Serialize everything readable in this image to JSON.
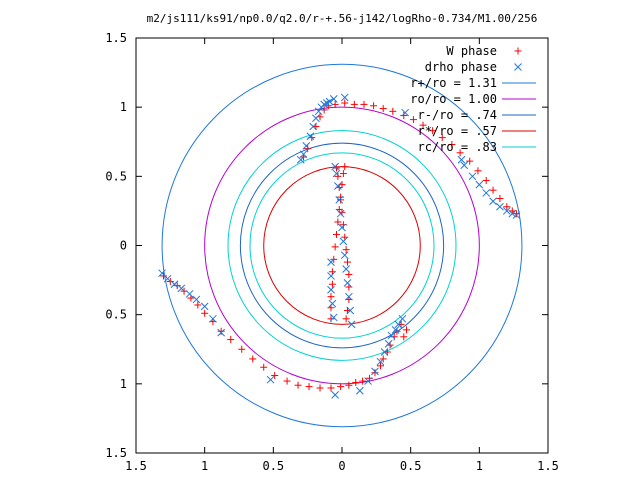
{
  "chart_data": {
    "type": "scatter",
    "title": "m2/js111/ks91/np0.0/q2.0/r-+.56-j142/logRho-0.734/M1.00/256",
    "xlim": [
      -1.5,
      1.5
    ],
    "ylim": [
      -1.5,
      1.5
    ],
    "x_tick_values": [
      -1.5,
      -1,
      -0.5,
      0,
      0.5,
      1,
      1.5
    ],
    "x_tick_labels": [
      "1.5",
      "1",
      "0.5",
      "0",
      "0.5",
      "1",
      "1.5"
    ],
    "y_tick_values": [
      1.5,
      1,
      0.5,
      0,
      -0.5,
      -1,
      -1.5
    ],
    "y_tick_labels": [
      "1.5",
      "1",
      "0.5",
      "0",
      "0.5",
      "1",
      "1.5"
    ],
    "grid": false,
    "legend_position": "top-right",
    "point_series": [
      {
        "name": "W phase",
        "marker": "+",
        "color": "#ff0000",
        "x": [
          -0.04,
          -0.03,
          -0.02,
          -0.01,
          0.0,
          0.01,
          0.02,
          0.03,
          0.04,
          0.05,
          0.05,
          0.05,
          0.04,
          0.03,
          0.02,
          0.01,
          0.0,
          -0.01,
          -0.02,
          -0.03,
          -0.04,
          -0.05,
          -0.06,
          -0.07,
          -0.07,
          -0.08,
          -0.08,
          -0.08,
          -0.05,
          0.02,
          0.09,
          0.16,
          0.23,
          0.3,
          0.37,
          0.45,
          0.52,
          0.59,
          0.66,
          0.73,
          0.8,
          0.86,
          0.93,
          0.99,
          1.05,
          1.1,
          1.15,
          1.2,
          1.24,
          1.27,
          -1.3,
          -1.25,
          -1.2,
          -1.15,
          -1.1,
          -1.05,
          -1.0,
          -0.94,
          -0.88,
          -0.81,
          -0.73,
          -0.65,
          -0.57,
          -0.49,
          -0.4,
          -0.32,
          -0.24,
          -0.16,
          -0.08,
          -0.01,
          0.05,
          0.1,
          0.15,
          0.2,
          0.24,
          0.28,
          0.3,
          0.33,
          0.35,
          0.38,
          0.4,
          0.43,
          0.45,
          0.47,
          -0.28,
          -0.25,
          -0.22,
          -0.19,
          -0.16,
          -0.13,
          -0.1
        ],
        "y": [
          0.56,
          0.5,
          0.42,
          0.33,
          0.24,
          0.15,
          0.06,
          -0.03,
          -0.12,
          -0.21,
          -0.3,
          -0.39,
          -0.47,
          -0.53,
          0.57,
          0.52,
          0.44,
          0.35,
          0.26,
          0.17,
          0.08,
          -0.01,
          -0.1,
          -0.19,
          -0.28,
          -0.37,
          -0.45,
          -0.53,
          1.02,
          1.03,
          1.02,
          1.02,
          1.01,
          0.99,
          0.97,
          0.94,
          0.91,
          0.87,
          0.83,
          0.78,
          0.73,
          0.67,
          0.61,
          0.54,
          0.47,
          0.4,
          0.34,
          0.28,
          0.25,
          0.23,
          -0.22,
          -0.26,
          -0.29,
          -0.33,
          -0.38,
          -0.43,
          -0.49,
          -0.55,
          -0.62,
          -0.68,
          -0.75,
          -0.82,
          -0.88,
          -0.94,
          -0.98,
          -1.01,
          -1.02,
          -1.03,
          -1.03,
          -1.02,
          -1.01,
          -0.99,
          -0.98,
          -0.96,
          -0.92,
          -0.87,
          -0.82,
          -0.77,
          -0.72,
          -0.66,
          -0.62,
          -0.57,
          -0.66,
          -0.61,
          0.64,
          0.7,
          0.78,
          0.86,
          0.93,
          0.98,
          1.01
        ]
      },
      {
        "name": "drho phase",
        "marker": "x",
        "color": "#1e78dc",
        "x": [
          0.07,
          0.06,
          0.05,
          0.04,
          0.03,
          0.02,
          0.01,
          0.0,
          -0.01,
          -0.02,
          -0.03,
          -0.04,
          -0.05,
          -0.06,
          -0.07,
          -0.08,
          -0.08,
          -0.08,
          -0.3,
          -0.28,
          -0.26,
          -0.23,
          -0.21,
          -0.19,
          -0.17,
          -0.15,
          -0.13,
          -0.11,
          -0.09,
          -0.06,
          0.02,
          0.46,
          0.87,
          0.89,
          0.95,
          1.0,
          1.05,
          1.1,
          1.15,
          1.2,
          1.24,
          1.27,
          -1.31,
          -1.27,
          -1.22,
          -1.17,
          -1.11,
          -1.06,
          -1.0,
          -0.94,
          -0.88,
          -0.52,
          -0.05,
          0.13,
          0.19,
          0.24,
          0.28,
          0.31,
          0.34,
          0.36,
          0.39,
          0.41,
          0.44
        ],
        "y": [
          -0.57,
          -0.47,
          -0.37,
          -0.27,
          -0.17,
          -0.07,
          0.03,
          0.13,
          0.23,
          0.33,
          0.43,
          0.52,
          0.57,
          -0.52,
          -0.42,
          -0.32,
          -0.22,
          -0.12,
          0.62,
          0.66,
          0.72,
          0.79,
          0.86,
          0.92,
          0.97,
          1.0,
          1.02,
          1.03,
          1.04,
          1.06,
          1.07,
          0.96,
          0.62,
          0.58,
          0.5,
          0.44,
          0.38,
          0.32,
          0.28,
          0.25,
          0.23,
          0.22,
          -0.2,
          -0.24,
          -0.28,
          -0.31,
          -0.35,
          -0.39,
          -0.44,
          -0.53,
          -0.63,
          -0.97,
          -1.08,
          -1.05,
          -0.98,
          -0.91,
          -0.84,
          -0.77,
          -0.71,
          -0.65,
          -0.61,
          -0.57,
          -0.53
        ]
      }
    ],
    "circle_series": [
      {
        "name": "r+/ro = 1.31",
        "radius": 1.31,
        "color": "#1e78dc"
      },
      {
        "name": "ro/ro = 1.00",
        "radius": 1.0,
        "color": "#b400d2"
      },
      {
        "name": "r-/ro = .74",
        "radius": 0.74,
        "color": "#1e64c8"
      },
      {
        "name": "r*/ro = .57",
        "radius": 0.57,
        "color": "#dc0000"
      },
      {
        "name": "rc/ro = .83",
        "radius": 0.83,
        "color": "#00d2d2"
      }
    ],
    "extra_rings": [
      {
        "radius": 0.67,
        "color": "#00d2d2"
      }
    ]
  }
}
